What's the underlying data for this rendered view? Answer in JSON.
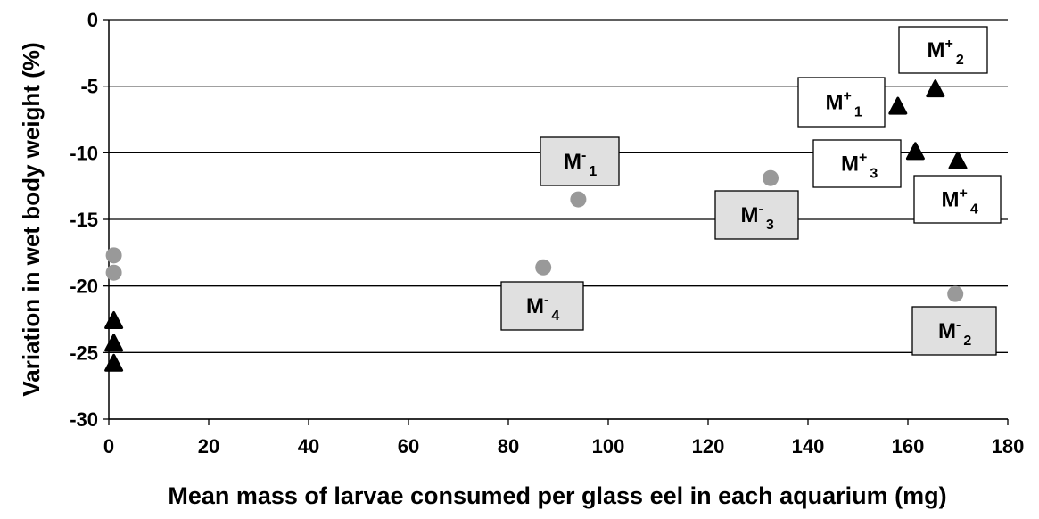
{
  "chart_data": {
    "type": "scatter",
    "xlabel": "Mean mass of larvae consumed per glass eel in each aquarium (mg)",
    "ylabel": "Variation in wet body weight (%)",
    "xlim": [
      0,
      180
    ],
    "xticks": [
      0,
      20,
      40,
      60,
      80,
      100,
      120,
      140,
      160,
      180
    ],
    "ylim": [
      -30,
      0
    ],
    "yticks": [
      0,
      -5,
      -10,
      -15,
      -20,
      -25,
      -30
    ],
    "grid": true,
    "series": [
      {
        "color": "#999999",
        "marker": "circle",
        "x": [
          1,
          1,
          94,
          87,
          132.5,
          169.5
        ],
        "values": [
          -17.7,
          -19,
          -13.5,
          -18.6,
          -11.9,
          -20.6
        ]
      },
      {
        "color": "#000000",
        "marker": "triangle",
        "x": [
          1,
          1,
          1,
          158,
          165.5,
          161.5,
          170
        ],
        "values": [
          -22.6,
          -24.3,
          -25.8,
          -6.5,
          -5.2,
          -9.9,
          -10.6
        ]
      }
    ],
    "annotations": [
      {
        "base": "M",
        "sup": "+",
        "sub": "2"
      },
      {
        "base": "M",
        "sup": "+",
        "sub": "1"
      },
      {
        "base": "M",
        "sup": "+",
        "sub": "3"
      },
      {
        "base": "M",
        "sup": "+",
        "sub": "4"
      },
      {
        "base": "M",
        "sup": "-",
        "sub": "1"
      },
      {
        "base": "M",
        "sup": "-",
        "sub": "3"
      },
      {
        "base": "M",
        "sup": "-",
        "sub": "4"
      },
      {
        "base": "M",
        "sup": "-",
        "sub": "2"
      }
    ]
  }
}
